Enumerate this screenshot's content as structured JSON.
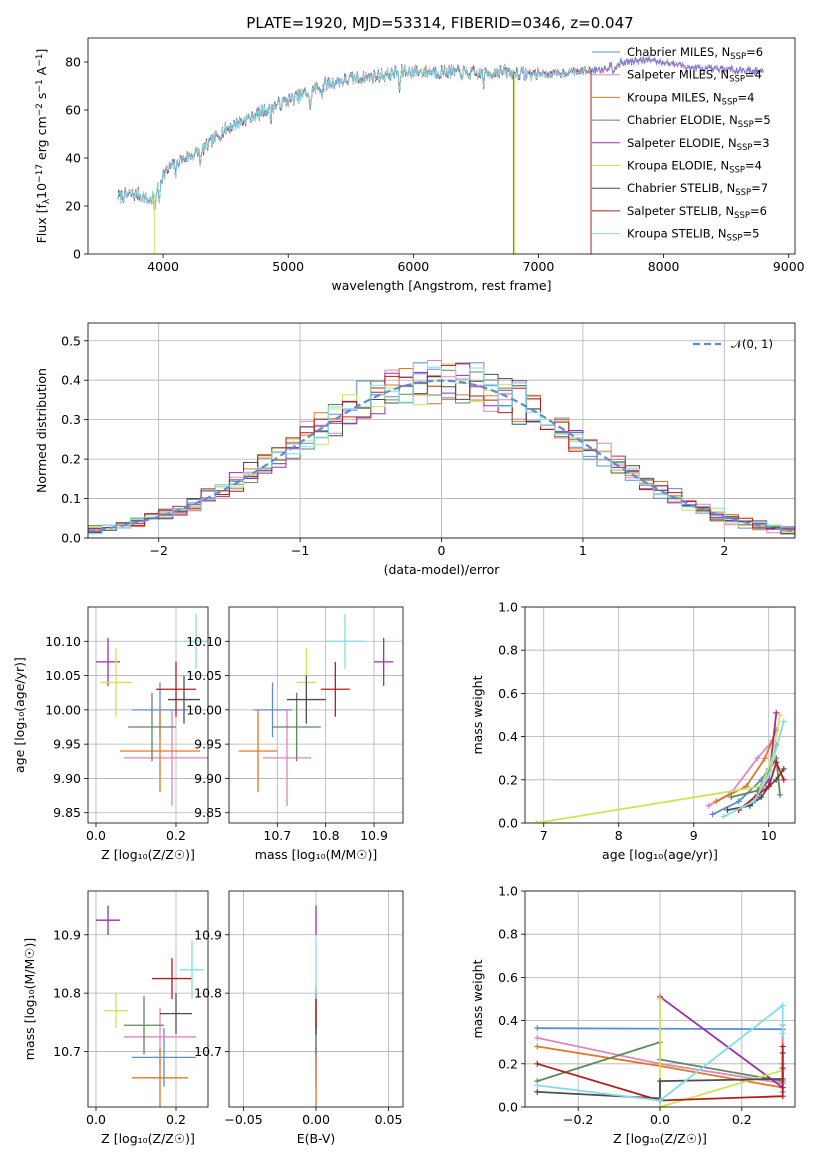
{
  "title": "PLATE=1920, MJD=53314, FIBERID=0346, z=0.047",
  "series_styles": [
    {
      "name": "Chabrier MILES, N$_{SSP}$=6",
      "label_main": "Chabrier MILES, N",
      "label_sub": "SSP",
      "label_tail": "=6",
      "color": "#5b8bd9"
    },
    {
      "name": "Salpeter MILES, N$_{SSP}$=4",
      "label_main": "Salpeter MILES, N",
      "label_sub": "SSP",
      "label_tail": "=4",
      "color": "#e384bd"
    },
    {
      "name": "Kroupa MILES, N$_{SSP}$=4",
      "label_main": "Kroupa MILES, N",
      "label_sub": "SSP",
      "label_tail": "=4",
      "color": "#e07722"
    },
    {
      "name": "Chabrier ELODIE, N$_{SSP}$=5",
      "label_main": "Chabrier ELODIE, N",
      "label_sub": "SSP",
      "label_tail": "=5",
      "color": "#5c8a5c"
    },
    {
      "name": "Salpeter ELODIE, N$_{SSP}$=3",
      "label_main": "Salpeter ELODIE, N",
      "label_sub": "SSP",
      "label_tail": "=3",
      "color": "#9b2fae"
    },
    {
      "name": "Kroupa ELODIE, N$_{SSP}$=4",
      "label_main": "Kroupa ELODIE, N",
      "label_sub": "SSP",
      "label_tail": "=4",
      "color": "#d4e157"
    },
    {
      "name": "Chabrier STELIB, N$_{SSP}$=7",
      "label_main": "Chabrier STELIB, N",
      "label_sub": "SSP",
      "label_tail": "=7",
      "color": "#4d4d4d"
    },
    {
      "name": "Salpeter STELIB, N$_{SSP}$=6",
      "label_main": "Salpeter STELIB, N",
      "label_sub": "SSP",
      "label_tail": "=6",
      "color": "#b71c1c"
    },
    {
      "name": "Kroupa STELIB, N$_{SSP}$=5",
      "label_main": "Kroupa STELIB, N",
      "label_sub": "SSP",
      "label_tail": "=5",
      "color": "#80deea"
    }
  ],
  "chart_data": [
    {
      "id": "spectrum",
      "type": "line",
      "xlabel": "wavelength [Angstrom, rest frame]",
      "ylabel_main": "Flux [f",
      "ylabel_sub": "λ",
      "ylabel_rest": "10",
      "ylabel_sup1": "−17",
      "ylabel_rest2": " erg cm",
      "ylabel_sup2": "−2",
      "ylabel_rest3": " s",
      "ylabel_sup3": "−1",
      "ylabel_rest4": " A",
      "ylabel_sup4": "−1",
      "ylabel_end": "]",
      "xlim": [
        3400,
        9050
      ],
      "ylim": [
        0,
        90
      ],
      "xticks": [
        4000,
        5000,
        6000,
        7000,
        8000,
        9000
      ],
      "yticks": [
        0,
        20,
        40,
        60,
        80
      ],
      "continuum": [
        [
          3640,
          24
        ],
        [
          3800,
          25
        ],
        [
          3900,
          22
        ],
        [
          4000,
          33
        ],
        [
          4100,
          38
        ],
        [
          4300,
          43
        ],
        [
          4500,
          52
        ],
        [
          4700,
          57
        ],
        [
          4900,
          62
        ],
        [
          5100,
          66
        ],
        [
          5300,
          71
        ],
        [
          5500,
          73
        ],
        [
          5700,
          74
        ],
        [
          5900,
          76
        ],
        [
          6100,
          76
        ],
        [
          6300,
          76
        ],
        [
          6500,
          75
        ],
        [
          6700,
          76
        ],
        [
          6900,
          75
        ],
        [
          7100,
          75
        ],
        [
          7300,
          76
        ],
        [
          7500,
          77
        ],
        [
          7700,
          80
        ],
        [
          7900,
          81
        ],
        [
          8100,
          79
        ],
        [
          8300,
          77
        ],
        [
          8500,
          77
        ],
        [
          8800,
          76
        ]
      ],
      "series_xrange": [
        [
          3640,
          8800
        ],
        [
          3640,
          8800
        ],
        [
          3640,
          7420
        ],
        [
          3640,
          6800
        ],
        [
          3640,
          8800
        ],
        [
          3640,
          6810
        ],
        [
          3640,
          7420
        ],
        [
          3640,
          7420
        ],
        [
          3640,
          7420
        ]
      ],
      "dropouts": [
        {
          "series": 5,
          "x": 3930
        },
        {
          "series": 5,
          "x": 6810
        },
        {
          "series": 7,
          "x": 7420
        },
        {
          "series": 3,
          "x": 6800
        }
      ]
    },
    {
      "id": "residuals",
      "type": "histogram",
      "xlabel": "(data-model)/error",
      "ylabel": "Normed distribution",
      "xlim": [
        -2.5,
        2.5
      ],
      "ylim": [
        0,
        0.545
      ],
      "xticks": [
        -2,
        -1,
        0,
        1,
        2
      ],
      "yticks": [
        0.0,
        0.1,
        0.2,
        0.3,
        0.4,
        0.5
      ],
      "bin_width": 0.1,
      "normal_label": "𝒩(0, 1)",
      "normal_color": "#5b8bd9"
    },
    {
      "id": "age_vs_Z",
      "type": "errorbar",
      "xlabel": "Z [log₁₀(Z/Z☉)]",
      "ylabel": "age  [log₁₀(age/yr)]",
      "xlim": [
        -0.02,
        0.28
      ],
      "ylim": [
        9.835,
        10.15
      ],
      "xticks": [
        0.0,
        0.2
      ],
      "yticks": [
        9.85,
        9.9,
        9.95,
        10.0,
        10.05,
        10.1
      ],
      "points": [
        {
          "x": 0.16,
          "y": 10.0,
          "xerr": 0.07,
          "yerr": 0.04
        },
        {
          "x": 0.19,
          "y": 9.93,
          "xerr": 0.12,
          "yerr": 0.07
        },
        {
          "x": 0.16,
          "y": 9.94,
          "xerr": 0.1,
          "yerr": 0.06
        },
        {
          "x": 0.14,
          "y": 9.975,
          "xerr": 0.06,
          "yerr": 0.05
        },
        {
          "x": 0.03,
          "y": 10.07,
          "xerr": 0.03,
          "yerr": 0.035
        },
        {
          "x": 0.05,
          "y": 10.04,
          "xerr": 0.04,
          "yerr": 0.05
        },
        {
          "x": 0.22,
          "y": 10.015,
          "xerr": 0.04,
          "yerr": 0.035
        },
        {
          "x": 0.2,
          "y": 10.03,
          "xerr": 0.05,
          "yerr": 0.04
        },
        {
          "x": 0.25,
          "y": 10.1,
          "xerr": 0.03,
          "yerr": 0.04
        }
      ]
    },
    {
      "id": "age_vs_mass",
      "type": "errorbar",
      "xlabel": "mass [log₁₀(M/M☉)]",
      "ylabel": "",
      "xlim": [
        10.6,
        10.96
      ],
      "ylim": [
        9.835,
        10.15
      ],
      "xticks": [
        10.7,
        10.8,
        10.9
      ],
      "yticks": [
        9.85,
        9.9,
        9.95,
        10.0,
        10.05,
        10.1
      ],
      "points": [
        {
          "x": 10.69,
          "y": 10.0,
          "xerr": 0.04,
          "yerr": 0.04
        },
        {
          "x": 10.72,
          "y": 9.93,
          "xerr": 0.05,
          "yerr": 0.07
        },
        {
          "x": 10.66,
          "y": 9.94,
          "xerr": 0.04,
          "yerr": 0.06
        },
        {
          "x": 10.74,
          "y": 9.975,
          "xerr": 0.05,
          "yerr": 0.05
        },
        {
          "x": 10.92,
          "y": 10.07,
          "xerr": 0.02,
          "yerr": 0.035
        },
        {
          "x": 10.76,
          "y": 10.04,
          "xerr": 0.02,
          "yerr": 0.05
        },
        {
          "x": 10.76,
          "y": 10.015,
          "xerr": 0.04,
          "yerr": 0.035
        },
        {
          "x": 10.82,
          "y": 10.03,
          "xerr": 0.03,
          "yerr": 0.04
        },
        {
          "x": 10.84,
          "y": 10.1,
          "xerr": 0.04,
          "yerr": 0.04
        }
      ]
    },
    {
      "id": "weight_vs_age",
      "type": "line",
      "xlabel": "age  [log₁₀(age/yr)]",
      "ylabel": "mass weight",
      "xlim": [
        6.75,
        10.35
      ],
      "ylim": [
        0,
        1
      ],
      "xticks": [
        7,
        8,
        9,
        10
      ],
      "yticks": [
        0.0,
        0.2,
        0.4,
        0.6,
        0.8,
        1.0
      ],
      "series": [
        {
          "points": [
            [
              9.25,
              0.04
            ],
            [
              9.6,
              0.1
            ],
            [
              9.9,
              0.2
            ],
            [
              10.0,
              0.25
            ],
            [
              10.1,
              0.36
            ]
          ]
        },
        {
          "points": [
            [
              9.2,
              0.08
            ],
            [
              9.5,
              0.14
            ],
            [
              9.85,
              0.3
            ],
            [
              10.05,
              0.38
            ]
          ]
        },
        {
          "points": [
            [
              9.3,
              0.1
            ],
            [
              9.7,
              0.17
            ],
            [
              9.95,
              0.3
            ],
            [
              10.1,
              0.43
            ]
          ]
        },
        {
          "points": [
            [
              9.5,
              0.12
            ],
            [
              9.85,
              0.15
            ],
            [
              10.0,
              0.24
            ],
            [
              10.1,
              0.3
            ],
            [
              10.15,
              0.13
            ]
          ]
        },
        {
          "points": [
            [
              9.8,
              0.11
            ],
            [
              10.0,
              0.2
            ],
            [
              10.1,
              0.51
            ]
          ]
        },
        {
          "points": [
            [
              6.9,
              0.0
            ],
            [
              9.9,
              0.17
            ],
            [
              10.05,
              0.3
            ],
            [
              10.15,
              0.5
            ]
          ]
        },
        {
          "points": [
            [
              9.45,
              0.06
            ],
            [
              9.75,
              0.08
            ],
            [
              9.9,
              0.12
            ],
            [
              10.0,
              0.17
            ],
            [
              10.1,
              0.2
            ],
            [
              10.2,
              0.25
            ]
          ]
        },
        {
          "points": [
            [
              9.6,
              0.06
            ],
            [
              9.85,
              0.13
            ],
            [
              10.0,
              0.17
            ],
            [
              10.1,
              0.28
            ],
            [
              10.2,
              0.2
            ]
          ]
        },
        {
          "points": [
            [
              9.4,
              0.03
            ],
            [
              9.8,
              0.1
            ],
            [
              10.0,
              0.22
            ],
            [
              10.2,
              0.47
            ]
          ]
        }
      ]
    },
    {
      "id": "mass_vs_Z",
      "type": "errorbar",
      "xlabel": "Z [log₁₀(Z/Z☉)]",
      "ylabel": "mass [log₁₀(M/M☉)]",
      "xlim": [
        -0.02,
        0.28
      ],
      "ylim": [
        10.605,
        10.975
      ],
      "xticks": [
        0.0,
        0.2
      ],
      "yticks": [
        10.7,
        10.8,
        10.9
      ],
      "points": [
        {
          "x": 0.17,
          "y": 10.69,
          "xerr": 0.08,
          "yerr": 0.05
        },
        {
          "x": 0.16,
          "y": 10.725,
          "xerr": 0.09,
          "yerr": 0.05
        },
        {
          "x": 0.16,
          "y": 10.655,
          "xerr": 0.07,
          "yerr": 0.05
        },
        {
          "x": 0.12,
          "y": 10.745,
          "xerr": 0.05,
          "yerr": 0.05
        },
        {
          "x": 0.03,
          "y": 10.925,
          "xerr": 0.03,
          "yerr": 0.025
        },
        {
          "x": 0.05,
          "y": 10.77,
          "xerr": 0.03,
          "yerr": 0.03
        },
        {
          "x": 0.2,
          "y": 10.765,
          "xerr": 0.04,
          "yerr": 0.035
        },
        {
          "x": 0.19,
          "y": 10.825,
          "xerr": 0.05,
          "yerr": 0.035
        },
        {
          "x": 0.24,
          "y": 10.84,
          "xerr": 0.03,
          "yerr": 0.05
        }
      ]
    },
    {
      "id": "mass_vs_ebv",
      "type": "errorbar",
      "xlabel": "E(B-V)",
      "ylabel": "",
      "xlim": [
        -0.06,
        0.06
      ],
      "ylim": [
        10.605,
        10.975
      ],
      "xticks": [
        -0.05,
        0.0,
        0.05
      ],
      "yticks": [
        10.7,
        10.8,
        10.9
      ],
      "points": [
        {
          "x": 0,
          "y": 10.69,
          "yerr": 0.05
        },
        {
          "x": 0,
          "y": 10.725,
          "yerr": 0.05
        },
        {
          "x": 0,
          "y": 10.655,
          "yerr": 0.05
        },
        {
          "x": 0,
          "y": 10.745,
          "yerr": 0.05
        },
        {
          "x": 0,
          "y": 10.925,
          "yerr": 0.025
        },
        {
          "x": 0,
          "y": 10.77,
          "yerr": 0.03
        },
        {
          "x": 0,
          "y": 10.765,
          "yerr": 0.035
        },
        {
          "x": 0,
          "y": 10.775,
          "yerr": 0.035
        },
        {
          "x": 0,
          "y": 10.84,
          "yerr": 0.05
        }
      ]
    },
    {
      "id": "weight_vs_Z",
      "type": "line",
      "xlabel": "Z [log₁₀(Z/Z☉)]",
      "ylabel": "mass weight",
      "xlim": [
        -0.33,
        0.33
      ],
      "ylim": [
        0,
        1
      ],
      "xticks": [
        -0.2,
        0.0,
        0.2
      ],
      "yticks": [
        0.0,
        0.2,
        0.4,
        0.6,
        0.8,
        1.0
      ],
      "series": [
        {
          "points": [
            [
              -0.3,
              0.365
            ],
            [
              0.3,
              0.36
            ],
            [
              0.3,
              0.07
            ]
          ]
        },
        {
          "points": [
            [
              -0.3,
              0.32
            ],
            [
              0.0,
              0.2
            ],
            [
              0.3,
              0.11
            ],
            [
              0.3,
              0.38
            ]
          ]
        },
        {
          "points": [
            [
              -0.3,
              0.28
            ],
            [
              0.0,
              0.19
            ],
            [
              0.3,
              0.09
            ],
            [
              0.3,
              0.2
            ]
          ]
        },
        {
          "points": [
            [
              -0.3,
              0.12
            ],
            [
              0.0,
              0.3
            ],
            [
              0.0,
              0.22
            ],
            [
              0.3,
              0.12
            ]
          ]
        },
        {
          "points": [
            [
              0.0,
              0.51
            ],
            [
              0.3,
              0.09
            ],
            [
              0.3,
              0.18
            ]
          ]
        },
        {
          "points": [
            [
              0.0,
              0.5
            ],
            [
              0.0,
              0.0
            ],
            [
              0.3,
              0.17
            ]
          ]
        },
        {
          "points": [
            [
              -0.3,
              0.07
            ],
            [
              0.0,
              0.04
            ],
            [
              0.0,
              0.12
            ],
            [
              0.3,
              0.13
            ],
            [
              0.3,
              0.25
            ]
          ]
        },
        {
          "points": [
            [
              -0.3,
              0.2
            ],
            [
              0.0,
              0.03
            ],
            [
              0.3,
              0.05
            ],
            [
              0.3,
              0.28
            ]
          ]
        },
        {
          "points": [
            [
              -0.3,
              0.1
            ],
            [
              0.0,
              0.03
            ],
            [
              0.3,
              0.47
            ],
            [
              0.3,
              0.34
            ]
          ]
        }
      ]
    }
  ]
}
